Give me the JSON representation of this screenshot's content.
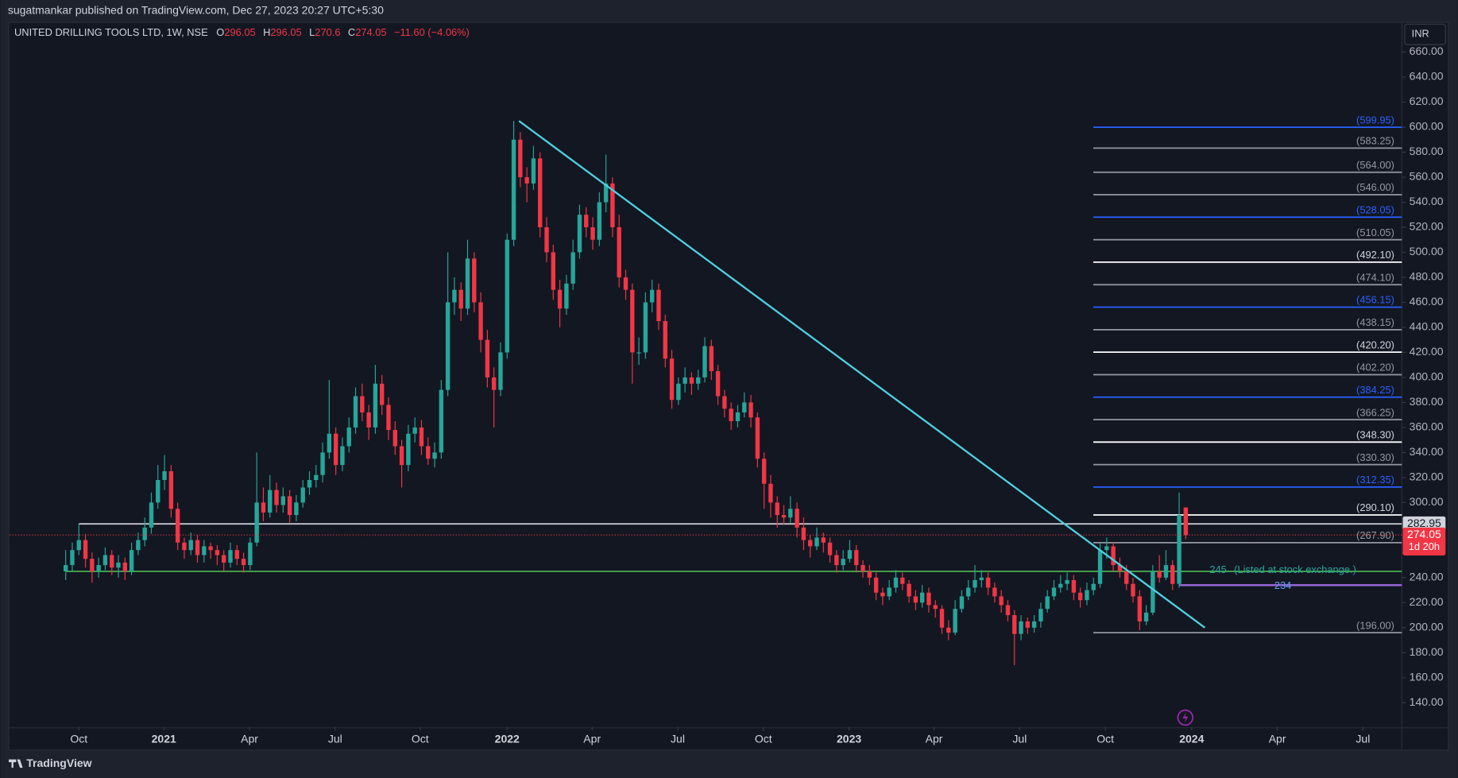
{
  "header": {
    "publisher": "sugatmankar published on TradingView.com, Dec 27, 2023 20:27 UTC+5:30"
  },
  "footer": {
    "brand": "TradingView"
  },
  "currency": "INR",
  "chart_data": {
    "type": "candlestick",
    "symbol": "UNITED DRILLING TOOLS LTD, 1W, NSE",
    "ohlc_labels": [
      "O",
      "H",
      "L",
      "C"
    ],
    "change": "−11.60 (−4.06%)",
    "up_color": "#26a69a",
    "down_color": "#f23645",
    "xlim": [
      -8.5,
      202.8
    ],
    "ylim": [
      120.7,
      683.8
    ],
    "grid": false,
    "xticks": [
      {
        "value": 2,
        "label": "Oct"
      },
      {
        "value": 14.9,
        "label": "2021"
      },
      {
        "value": 27.9,
        "label": "Apr"
      },
      {
        "value": 40.9,
        "label": "Jul"
      },
      {
        "value": 53.8,
        "label": "Oct"
      },
      {
        "value": 67,
        "label": "2022"
      },
      {
        "value": 79.9,
        "label": "Apr"
      },
      {
        "value": 92.9,
        "label": "Jul"
      },
      {
        "value": 105.9,
        "label": "Oct"
      },
      {
        "value": 118.9,
        "label": "2023"
      },
      {
        "value": 131.8,
        "label": "Apr"
      },
      {
        "value": 144.8,
        "label": "Jul"
      },
      {
        "value": 157.8,
        "label": "Oct"
      },
      {
        "value": 170.9,
        "label": "2024"
      },
      {
        "value": 183.9,
        "label": "Apr"
      },
      {
        "value": 196.9,
        "label": "Jul"
      }
    ],
    "yticks": [
      {
        "value": 140,
        "label": "140.00"
      },
      {
        "value": 160,
        "label": "160.00"
      },
      {
        "value": 180,
        "label": "180.00"
      },
      {
        "value": 200,
        "label": "200.00"
      },
      {
        "value": 220,
        "label": "220.00"
      },
      {
        "value": 240,
        "label": "240.00"
      },
      {
        "value": 260,
        "label": "260.00"
      },
      {
        "value": 280,
        "label": "280.00"
      },
      {
        "value": 300,
        "label": "300.00"
      },
      {
        "value": 320,
        "label": "320.00"
      },
      {
        "value": 340,
        "label": "340.00"
      },
      {
        "value": 360,
        "label": "360.00"
      },
      {
        "value": 380,
        "label": "380.00"
      },
      {
        "value": 400,
        "label": "400.00"
      },
      {
        "value": 420,
        "label": "420.00"
      },
      {
        "value": 440,
        "label": "440.00"
      },
      {
        "value": 460,
        "label": "460.00"
      },
      {
        "value": 480,
        "label": "480.00"
      },
      {
        "value": 500,
        "label": "500.00"
      },
      {
        "value": 520,
        "label": "520.00"
      },
      {
        "value": 540,
        "label": "540.00"
      },
      {
        "value": 560,
        "label": "560.00"
      },
      {
        "value": 580,
        "label": "580.00"
      },
      {
        "value": 600,
        "label": "600.00"
      },
      {
        "value": 620,
        "label": "620.00"
      },
      {
        "value": 640,
        "label": "640.00"
      },
      {
        "value": 660,
        "label": "660.00"
      }
    ],
    "candles": [
      [
        245,
        262,
        238,
        250
      ],
      [
        250,
        268,
        245,
        262
      ],
      [
        262,
        283,
        258,
        270
      ],
      [
        270,
        275,
        248,
        255
      ],
      [
        255,
        260,
        236,
        245
      ],
      [
        245,
        256,
        240,
        250
      ],
      [
        250,
        264,
        246,
        258
      ],
      [
        258,
        262,
        242,
        248
      ],
      [
        248,
        258,
        240,
        252
      ],
      [
        252,
        256,
        238,
        245
      ],
      [
        245,
        268,
        242,
        262
      ],
      [
        262,
        276,
        258,
        270
      ],
      [
        270,
        288,
        265,
        280
      ],
      [
        280,
        308,
        275,
        300
      ],
      [
        300,
        330,
        295,
        318
      ],
      [
        318,
        338,
        310,
        325
      ],
      [
        325,
        330,
        288,
        295
      ],
      [
        295,
        300,
        262,
        268
      ],
      [
        268,
        272,
        255,
        262
      ],
      [
        262,
        276,
        258,
        270
      ],
      [
        270,
        274,
        252,
        258
      ],
      [
        258,
        270,
        252,
        265
      ],
      [
        265,
        268,
        255,
        262
      ],
      [
        262,
        266,
        250,
        258
      ],
      [
        258,
        262,
        245,
        252
      ],
      [
        252,
        268,
        248,
        262
      ],
      [
        262,
        266,
        250,
        255
      ],
      [
        255,
        260,
        244,
        250
      ],
      [
        250,
        272,
        246,
        268
      ],
      [
        268,
        340,
        265,
        300
      ],
      [
        300,
        312,
        285,
        292
      ],
      [
        292,
        322,
        288,
        310
      ],
      [
        310,
        316,
        292,
        298
      ],
      [
        298,
        312,
        292,
        305
      ],
      [
        305,
        310,
        284,
        290
      ],
      [
        290,
        306,
        285,
        300
      ],
      [
        300,
        318,
        296,
        312
      ],
      [
        312,
        325,
        306,
        318
      ],
      [
        318,
        330,
        312,
        322
      ],
      [
        322,
        348,
        316,
        340
      ],
      [
        340,
        398,
        335,
        355
      ],
      [
        355,
        360,
        322,
        330
      ],
      [
        330,
        352,
        325,
        345
      ],
      [
        345,
        368,
        340,
        360
      ],
      [
        360,
        392,
        355,
        385
      ],
      [
        385,
        395,
        365,
        372
      ],
      [
        372,
        378,
        350,
        360
      ],
      [
        360,
        410,
        355,
        395
      ],
      [
        395,
        402,
        370,
        378
      ],
      [
        378,
        384,
        350,
        358
      ],
      [
        358,
        365,
        338,
        345
      ],
      [
        345,
        350,
        312,
        330
      ],
      [
        330,
        362,
        325,
        355
      ],
      [
        355,
        368,
        348,
        360
      ],
      [
        360,
        366,
        338,
        345
      ],
      [
        345,
        352,
        330,
        335
      ],
      [
        335,
        348,
        328,
        340
      ],
      [
        340,
        398,
        335,
        390
      ],
      [
        390,
        500,
        385,
        460
      ],
      [
        460,
        480,
        450,
        470
      ],
      [
        470,
        476,
        445,
        455
      ],
      [
        455,
        510,
        450,
        495
      ],
      [
        495,
        500,
        452,
        460
      ],
      [
        460,
        468,
        420,
        430
      ],
      [
        430,
        438,
        392,
        400
      ],
      [
        400,
        408,
        360,
        390
      ],
      [
        390,
        428,
        385,
        420
      ],
      [
        420,
        515,
        415,
        510
      ],
      [
        510,
        605,
        505,
        590
      ],
      [
        590,
        596,
        552,
        560
      ],
      [
        560,
        568,
        540,
        555
      ],
      [
        555,
        585,
        550,
        575
      ],
      [
        575,
        580,
        512,
        520
      ],
      [
        520,
        528,
        492,
        500
      ],
      [
        500,
        506,
        462,
        470
      ],
      [
        470,
        478,
        440,
        455
      ],
      [
        455,
        482,
        450,
        475
      ],
      [
        475,
        510,
        470,
        500
      ],
      [
        500,
        538,
        495,
        530
      ],
      [
        530,
        536,
        512,
        520
      ],
      [
        520,
        528,
        502,
        510
      ],
      [
        510,
        548,
        505,
        540
      ],
      [
        540,
        578,
        532,
        555
      ],
      [
        555,
        560,
        512,
        520
      ],
      [
        520,
        530,
        472,
        480
      ],
      [
        480,
        486,
        462,
        470
      ],
      [
        470,
        475,
        395,
        420
      ],
      [
        420,
        432,
        410,
        420
      ],
      [
        420,
        468,
        415,
        460
      ],
      [
        460,
        478,
        452,
        470
      ],
      [
        470,
        475,
        438,
        445
      ],
      [
        445,
        450,
        408,
        415
      ],
      [
        415,
        422,
        375,
        382
      ],
      [
        382,
        400,
        378,
        395
      ],
      [
        395,
        408,
        388,
        400
      ],
      [
        400,
        404,
        386,
        395
      ],
      [
        395,
        406,
        390,
        400
      ],
      [
        400,
        432,
        396,
        425
      ],
      [
        425,
        430,
        398,
        405
      ],
      [
        405,
        410,
        378,
        385
      ],
      [
        385,
        390,
        368,
        375
      ],
      [
        375,
        380,
        358,
        365
      ],
      [
        365,
        378,
        360,
        372
      ],
      [
        372,
        388,
        368,
        380
      ],
      [
        380,
        386,
        360,
        368
      ],
      [
        368,
        372,
        328,
        335
      ],
      [
        335,
        340,
        295,
        315
      ],
      [
        315,
        322,
        288,
        300
      ],
      [
        300,
        305,
        280,
        290
      ],
      [
        290,
        298,
        282,
        288
      ],
      [
        288,
        305,
        284,
        295
      ],
      [
        295,
        300,
        272,
        280
      ],
      [
        280,
        288,
        262,
        270
      ],
      [
        270,
        274,
        256,
        265
      ],
      [
        265,
        280,
        262,
        272
      ],
      [
        272,
        276,
        260,
        268
      ],
      [
        268,
        272,
        252,
        258
      ],
      [
        258,
        262,
        244,
        250
      ],
      [
        250,
        262,
        246,
        255
      ],
      [
        255,
        270,
        252,
        262
      ],
      [
        262,
        266,
        244,
        250
      ],
      [
        250,
        254,
        240,
        245
      ],
      [
        245,
        250,
        234,
        240
      ],
      [
        240,
        244,
        222,
        228
      ],
      [
        228,
        232,
        218,
        225
      ],
      [
        225,
        238,
        222,
        232
      ],
      [
        232,
        246,
        228,
        240
      ],
      [
        240,
        244,
        230,
        235
      ],
      [
        235,
        238,
        220,
        225
      ],
      [
        225,
        230,
        214,
        220
      ],
      [
        220,
        234,
        216,
        228
      ],
      [
        228,
        232,
        212,
        218
      ],
      [
        218,
        222,
        208,
        215
      ],
      [
        215,
        218,
        195,
        200
      ],
      [
        200,
        206,
        190,
        196
      ],
      [
        196,
        222,
        194,
        215
      ],
      [
        215,
        230,
        212,
        225
      ],
      [
        225,
        238,
        222,
        232
      ],
      [
        232,
        250,
        228,
        238
      ],
      [
        238,
        246,
        232,
        240
      ],
      [
        240,
        244,
        226,
        232
      ],
      [
        232,
        236,
        220,
        225
      ],
      [
        225,
        230,
        212,
        218
      ],
      [
        218,
        222,
        205,
        210
      ],
      [
        210,
        214,
        170,
        195
      ],
      [
        195,
        210,
        190,
        205
      ],
      [
        205,
        208,
        195,
        200
      ],
      [
        200,
        210,
        196,
        205
      ],
      [
        205,
        220,
        200,
        215
      ],
      [
        215,
        230,
        212,
        225
      ],
      [
        225,
        238,
        222,
        232
      ],
      [
        232,
        242,
        228,
        235
      ],
      [
        235,
        244,
        230,
        238
      ],
      [
        238,
        242,
        222,
        228
      ],
      [
        228,
        232,
        216,
        222
      ],
      [
        222,
        236,
        218,
        230
      ],
      [
        230,
        240,
        226,
        235
      ],
      [
        235,
        268,
        232,
        262
      ],
      [
        262,
        272,
        255,
        265
      ],
      [
        265,
        268,
        245,
        250
      ],
      [
        250,
        256,
        240,
        245
      ],
      [
        245,
        250,
        230,
        235
      ],
      [
        235,
        240,
        220,
        225
      ],
      [
        225,
        230,
        198,
        205
      ],
      [
        205,
        218,
        202,
        212
      ],
      [
        212,
        250,
        210,
        245
      ],
      [
        245,
        258,
        236,
        240
      ],
      [
        240,
        262,
        238,
        250
      ],
      [
        250,
        254,
        230,
        235
      ],
      [
        235,
        308,
        232,
        290
      ],
      [
        296.05,
        296.05,
        270.6,
        274.05
      ]
    ],
    "levels": [
      {
        "value": 599.95,
        "label": "(599.95)",
        "color": "#2962ff"
      },
      {
        "value": 583.25,
        "label": "(583.25)",
        "color": "#9598a1"
      },
      {
        "value": 564.0,
        "label": "(564.00)",
        "color": "#9598a1"
      },
      {
        "value": 546.0,
        "label": "(546.00)",
        "color": "#9598a1"
      },
      {
        "value": 528.05,
        "label": "(528.05)",
        "color": "#2962ff"
      },
      {
        "value": 510.05,
        "label": "(510.05)",
        "color": "#9598a1"
      },
      {
        "value": 492.1,
        "label": "(492.10)",
        "color": "#ffffff"
      },
      {
        "value": 474.1,
        "label": "(474.10)",
        "color": "#9598a1"
      },
      {
        "value": 456.15,
        "label": "(456.15)",
        "color": "#2962ff"
      },
      {
        "value": 438.15,
        "label": "(438.15)",
        "color": "#9598a1"
      },
      {
        "value": 420.2,
        "label": "(420.20)",
        "color": "#ffffff"
      },
      {
        "value": 402.2,
        "label": "(402.20)",
        "color": "#9598a1"
      },
      {
        "value": 384.25,
        "label": "(384.25)",
        "color": "#2962ff"
      },
      {
        "value": 366.25,
        "label": "(366.25)",
        "color": "#9598a1"
      },
      {
        "value": 348.3,
        "label": "(348.30)",
        "color": "#ffffff"
      },
      {
        "value": 330.3,
        "label": "(330.30)",
        "color": "#9598a1"
      },
      {
        "value": 312.35,
        "label": "(312.35)",
        "color": "#2962ff"
      },
      {
        "value": 290.1,
        "label": "(290.10)",
        "color": "#ffffff"
      },
      {
        "value": 267.9,
        "label": "(267.90)",
        "color": "#9598a1"
      },
      {
        "value": 196.0,
        "label": "(196.00)",
        "color": "#9598a1"
      }
    ],
    "trendline": {
      "points": [
        [
          68.8,
          605
        ],
        [
          172.9,
          200
        ]
      ],
      "color": "#4dd0e1"
    },
    "reference_line": {
      "value": 282.95,
      "color": "#d1d4dc"
    },
    "listing_line": {
      "value": 245,
      "label": "(Listed at stock exchange.)",
      "color": "#4caf50"
    },
    "support_line": {
      "value": 234,
      "color": "#9c6ade"
    },
    "countdown": "1d 20h"
  }
}
